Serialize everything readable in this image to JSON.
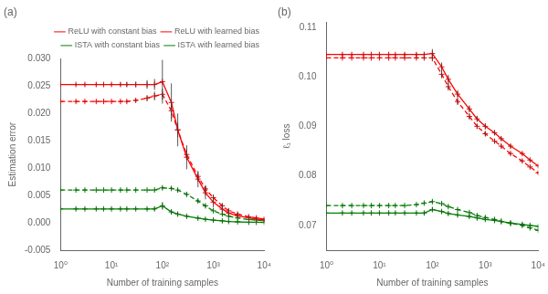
{
  "chart_data": [
    {
      "type": "line",
      "title": "(a)",
      "x_label": "Number of training samples",
      "y_label": "Estimation error",
      "log": "x",
      "grid": false,
      "legend": "upper right",
      "xlim": [
        1,
        10000
      ],
      "xticks": [
        {
          "value": 1,
          "label": "10⁰"
        },
        {
          "value": 10,
          "label": "10¹"
        },
        {
          "value": 100,
          "label": "10²"
        },
        {
          "value": 1000,
          "label": "10³"
        },
        {
          "value": 10000,
          "label": "10⁴"
        }
      ],
      "ylim": [
        -0.005,
        0.03
      ],
      "yticks": [
        -0.005,
        {
          "value": 0.0,
          "label": "0.000"
        },
        0.005,
        {
          "value": 0.01,
          "label": "0.010"
        },
        0.015,
        {
          "value": 0.02,
          "label": "0.020"
        },
        0.025,
        {
          "value": 0.03,
          "label": "0.030"
        }
      ],
      "x": [
        1,
        2,
        3,
        5,
        7,
        10,
        15,
        20,
        30,
        50,
        70,
        100,
        150,
        200,
        300,
        500,
        700,
        1000,
        1500,
        2000,
        3000,
        5000,
        7000,
        10000
      ],
      "series": [
        {
          "name": "ReLU with constant bias",
          "color": "#FF0000",
          "line_style": "solid",
          "marker": "plus",
          "values": [
            0.0253,
            0.0253,
            0.0253,
            0.0253,
            0.0253,
            0.0253,
            0.0253,
            0.0253,
            0.0253,
            0.0253,
            0.0253,
            0.0258,
            0.022,
            0.017,
            0.012,
            0.008,
            0.0055,
            0.0038,
            0.0025,
            0.0018,
            0.0013,
            0.0009,
            0.0007,
            0.00055
          ],
          "errors": [
            0.0002,
            0.0002,
            0.0002,
            0.0002,
            0.0002,
            0.0002,
            0.0003,
            0.0004,
            0.0005,
            0.0008,
            0.001,
            0.004,
            0.0035,
            0.003,
            0.0022,
            0.0015,
            0.0012,
            0.001,
            0.0008,
            0.0006,
            0.0005,
            0.0004,
            0.0003,
            0.0003
          ]
        },
        {
          "name": "ReLU with learned bias",
          "color": "#FF0000",
          "line_style": "dashed",
          "marker": "plus",
          "values": [
            0.0222,
            0.0222,
            0.0222,
            0.0222,
            0.0222,
            0.0222,
            0.0222,
            0.0222,
            0.0224,
            0.0228,
            0.0232,
            0.0235,
            0.0205,
            0.017,
            0.0125,
            0.0085,
            0.0062,
            0.0046,
            0.0031,
            0.0022,
            0.0016,
            0.0011,
            0.0009,
            0.0007
          ],
          "errors": [
            0.0001,
            0.0001,
            0.0001,
            0.0001,
            0.0001,
            0.0001,
            0.0001,
            0.0002,
            0.0003,
            0.0005,
            0.0008,
            0.001,
            0.0015,
            0.0013,
            0.001,
            0.0008,
            0.0007,
            0.0006,
            0.0005,
            0.0004,
            0.0003,
            0.0003,
            0.0002,
            0.0002
          ]
        },
        {
          "name": "ISTA with constant bias",
          "color": "#008000",
          "line_style": "solid",
          "marker": "plus",
          "values": [
            0.00255,
            0.00255,
            0.00255,
            0.00255,
            0.00255,
            0.00255,
            0.00255,
            0.00255,
            0.00255,
            0.00255,
            0.00255,
            0.0031,
            0.002,
            0.0016,
            0.0012,
            0.00085,
            0.00065,
            0.0005,
            0.00035,
            0.00025,
            0.00018,
            0.00012,
            0.0001,
            8e-05
          ],
          "errors": [
            0.0002,
            0.0002,
            0.0002,
            0.0002,
            0.0002,
            0.0002,
            0.0002,
            0.0002,
            0.0002,
            0.0002,
            0.0003,
            0.0007,
            0.0004,
            0.0004,
            0.0003,
            0.0002,
            0.0002,
            0.0002,
            0.0002,
            0.0002,
            0.0001,
            0.0001,
            0.0001,
            0.0001
          ]
        },
        {
          "name": "ISTA with learned bias",
          "color": "#008000",
          "line_style": "dashed",
          "marker": "plus",
          "values": [
            0.006,
            0.006,
            0.006,
            0.006,
            0.006,
            0.006,
            0.006,
            0.006,
            0.006,
            0.006,
            0.006,
            0.0064,
            0.0063,
            0.006,
            0.0052,
            0.004,
            0.0031,
            0.0022,
            0.0016,
            0.0012,
            0.0009,
            0.0006,
            0.0005,
            0.0004
          ],
          "errors": [
            0.0001,
            0.0001,
            0.0001,
            0.0001,
            0.0001,
            0.0001,
            0.0001,
            0.0001,
            0.0001,
            0.0001,
            0.0002,
            0.0003,
            0.0003,
            0.0003,
            0.0003,
            0.0003,
            0.0003,
            0.0002,
            0.0002,
            0.0002,
            0.0001,
            0.0001,
            0.0001,
            0.0001
          ]
        }
      ]
    },
    {
      "type": "line",
      "title": "(b)",
      "x_label": "Number of training samples",
      "y_label": "ℓ₁ loss",
      "log": "x",
      "grid": false,
      "xlim": [
        1,
        10000
      ],
      "xticks": [
        {
          "value": 1,
          "label": "10⁰"
        },
        {
          "value": 10,
          "label": "10¹"
        },
        {
          "value": 100,
          "label": "10²"
        },
        {
          "value": 1000,
          "label": "10³"
        },
        {
          "value": 10000,
          "label": "10⁴"
        }
      ],
      "ylim": [
        0.065,
        0.111
      ],
      "yticks": [
        0.07,
        0.08,
        0.09,
        {
          "value": 0.1,
          "label": "0.10"
        },
        0.11
      ],
      "x": [
        1,
        2,
        3,
        5,
        7,
        10,
        15,
        20,
        30,
        50,
        70,
        100,
        150,
        200,
        300,
        500,
        700,
        1000,
        1500,
        2000,
        3000,
        5000,
        7000,
        10000
      ],
      "series": [
        {
          "name": "ReLU with constant bias",
          "color": "#FF0000",
          "line_style": "solid",
          "marker": "plus",
          "values": [
            0.1045,
            0.1045,
            0.1045,
            0.1045,
            0.1045,
            0.1045,
            0.1045,
            0.1045,
            0.1045,
            0.1045,
            0.1045,
            0.1047,
            0.102,
            0.0995,
            0.0965,
            0.0935,
            0.0915,
            0.09,
            0.0887,
            0.0875,
            0.086,
            0.0845,
            0.0832,
            0.082
          ],
          "errors": [
            0.0002,
            0.0002,
            0.0002,
            0.0002,
            0.0002,
            0.0002,
            0.0002,
            0.0002,
            0.0003,
            0.0003,
            0.0004,
            0.0009,
            0.0009,
            0.0009,
            0.0008,
            0.0007,
            0.0006,
            0.0006,
            0.0005,
            0.0004,
            0.0004,
            0.0003,
            0.0003,
            0.0003
          ]
        },
        {
          "name": "ReLU with learned bias",
          "color": "#FF0000",
          "line_style": "dashed",
          "marker": "plus",
          "values": [
            0.1038,
            0.1038,
            0.1038,
            0.1038,
            0.1038,
            0.1038,
            0.1038,
            0.1038,
            0.1038,
            0.1038,
            0.1038,
            0.1038,
            0.1005,
            0.098,
            0.095,
            0.092,
            0.09,
            0.0885,
            0.087,
            0.086,
            0.0845,
            0.083,
            0.0818,
            0.0806
          ],
          "errors": [
            0.0001,
            0.0001,
            0.0001,
            0.0001,
            0.0001,
            0.0001,
            0.0001,
            0.0001,
            0.0002,
            0.0002,
            0.0003,
            0.0007,
            0.0008,
            0.0008,
            0.0007,
            0.0006,
            0.0005,
            0.0005,
            0.0004,
            0.0004,
            0.0003,
            0.0003,
            0.0003,
            0.0003
          ]
        },
        {
          "name": "ISTA with constant bias",
          "color": "#008000",
          "line_style": "solid",
          "marker": "plus",
          "values": [
            0.0725,
            0.0725,
            0.0725,
            0.0725,
            0.0725,
            0.0725,
            0.0725,
            0.0725,
            0.0725,
            0.0725,
            0.0725,
            0.0732,
            0.0728,
            0.0724,
            0.0721,
            0.0718,
            0.0715,
            0.0712,
            0.071,
            0.0708,
            0.0705,
            0.0702,
            0.07,
            0.0698
          ],
          "errors": [
            0.0002,
            0.0002,
            0.0002,
            0.0002,
            0.0002,
            0.0002,
            0.0002,
            0.0002,
            0.0002,
            0.0002,
            0.0003,
            0.0004,
            0.0003,
            0.0003,
            0.0003,
            0.0003,
            0.0003,
            0.0003,
            0.0003,
            0.0002,
            0.0002,
            0.0002,
            0.0002,
            0.0002
          ]
        },
        {
          "name": "ISTA with learned bias",
          "color": "#008000",
          "line_style": "dashed",
          "marker": "plus",
          "values": [
            0.074,
            0.074,
            0.074,
            0.074,
            0.074,
            0.074,
            0.074,
            0.074,
            0.074,
            0.0742,
            0.0745,
            0.0748,
            0.0744,
            0.0738,
            0.0732,
            0.0726,
            0.072,
            0.0716,
            0.0712,
            0.0708,
            0.0704,
            0.07,
            0.0695,
            0.069
          ],
          "errors": [
            0.0001,
            0.0001,
            0.0001,
            0.0001,
            0.0001,
            0.0001,
            0.0001,
            0.0001,
            0.0001,
            0.0001,
            0.0002,
            0.0003,
            0.0003,
            0.0003,
            0.0002,
            0.0002,
            0.0002,
            0.0002,
            0.0002,
            0.0002,
            0.0002,
            0.0002,
            0.0002,
            0.0002
          ]
        }
      ]
    }
  ]
}
